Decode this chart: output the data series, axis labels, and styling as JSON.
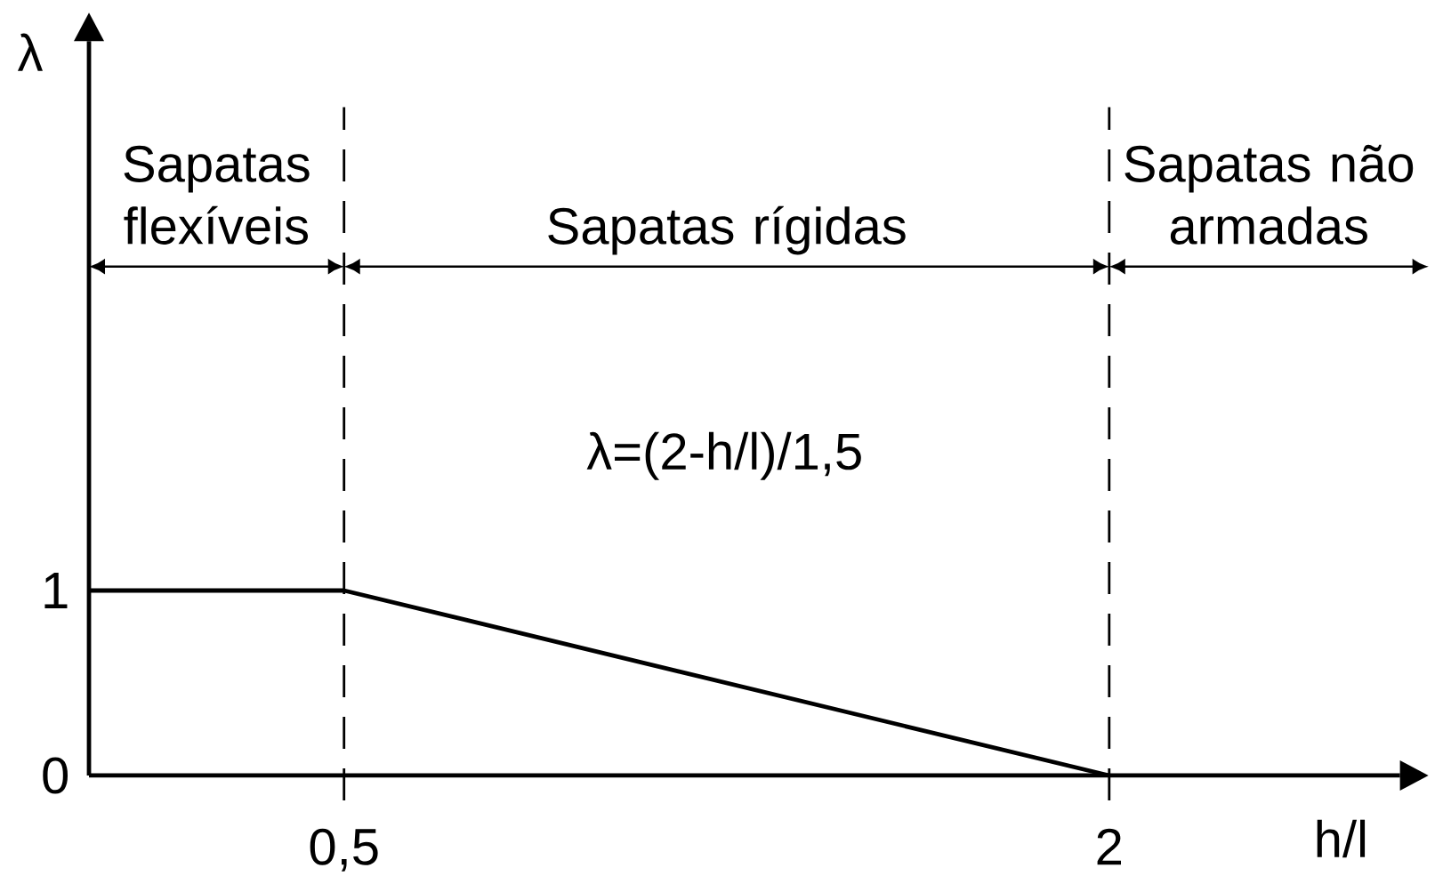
{
  "chart_data": {
    "type": "line",
    "xlabel": "h/l",
    "ylabel": "λ",
    "annotations": [
      "Sapatas flexíveis",
      "Sapatas rígidas",
      "Sapatas não armadas",
      "λ=(2-h/l)/1,5"
    ],
    "series": [
      {
        "x": [
          0,
          0.5,
          2
        ],
        "values": [
          1,
          1,
          0
        ],
        "color": "#000000"
      }
    ],
    "xlim": [
      0,
      2.57
    ],
    "ylim": [
      0,
      3.97
    ],
    "xticks": [
      {
        "value": 0.5,
        "label": "0,5"
      },
      2
    ],
    "yticks": [
      0,
      1
    ],
    "ref_lines": [
      {
        "axis": "x",
        "value": 0.5,
        "line_style": "dashed"
      },
      {
        "axis": "x",
        "value": 2,
        "line_style": "dashed"
      }
    ]
  }
}
